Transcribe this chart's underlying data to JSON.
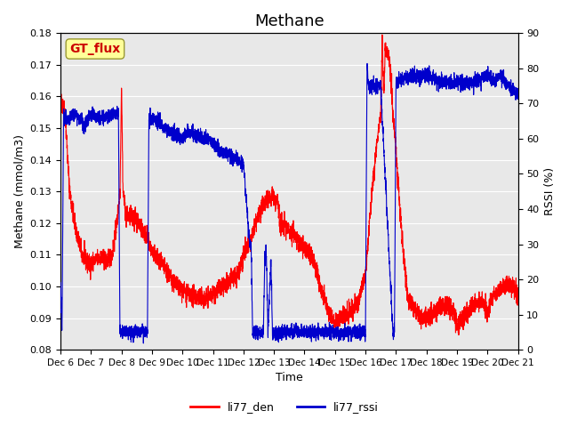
{
  "title": "Methane",
  "ylabel_left": "Methane (mmol/m3)",
  "ylabel_right": "RSSI (%)",
  "xlabel": "Time",
  "ylim_left": [
    0.08,
    0.18
  ],
  "ylim_right": [
    0,
    90
  ],
  "yticks_left": [
    0.08,
    0.09,
    0.1,
    0.11,
    0.12,
    0.13,
    0.14,
    0.15,
    0.16,
    0.17,
    0.18
  ],
  "yticks_right": [
    0,
    10,
    20,
    30,
    40,
    50,
    60,
    70,
    80,
    90
  ],
  "xtick_labels": [
    "Dec 6",
    "Dec 7",
    "Dec 8",
    "Dec 9",
    "Dec 10",
    "Dec 11",
    "Dec 12",
    "Dec 13",
    "Dec 14",
    "Dec 15",
    "Dec 16",
    "Dec 17",
    "Dec 18",
    "Dec 19",
    "Dec 20",
    "Dec 21"
  ],
  "color_red": "#ff0000",
  "color_blue": "#0000cc",
  "background_color": "#e8e8e8",
  "legend_label_red": "li77_den",
  "legend_label_blue": "li77_rssi",
  "annotation_text": "GT_flux",
  "annotation_color": "#cc0000",
  "annotation_bg": "#ffff99",
  "title_fontsize": 13,
  "red_xp": [
    0.0,
    0.15,
    0.3,
    0.5,
    0.7,
    0.9,
    1.0,
    1.1,
    1.3,
    1.5,
    1.7,
    1.85,
    1.95,
    2.0,
    2.05,
    2.15,
    2.3,
    2.5,
    2.7,
    2.9,
    3.0,
    3.2,
    3.4,
    3.6,
    3.8,
    4.0,
    4.2,
    4.4,
    4.6,
    4.8,
    5.0,
    5.2,
    5.4,
    5.6,
    5.8,
    6.0,
    6.2,
    6.4,
    6.6,
    6.8,
    6.9,
    6.95,
    7.0,
    7.05,
    7.1,
    7.2,
    7.3,
    7.4,
    7.5,
    7.7,
    7.9,
    8.0,
    8.2,
    8.4,
    8.6,
    8.8,
    9.0,
    9.2,
    9.4,
    9.6,
    9.8,
    10.0,
    10.1,
    10.2,
    10.3,
    10.4,
    10.5,
    10.55,
    10.6,
    10.65,
    10.7,
    10.8,
    10.9,
    11.0,
    11.2,
    11.4,
    11.6,
    11.8,
    12.0,
    12.2,
    12.4,
    12.6,
    12.8,
    12.85,
    12.9,
    12.95,
    13.0,
    13.2,
    13.4,
    13.6,
    13.8,
    14.0,
    14.2,
    14.4,
    14.6,
    14.8,
    15.0
  ],
  "red_yp": [
    0.159,
    0.155,
    0.13,
    0.118,
    0.11,
    0.107,
    0.107,
    0.108,
    0.109,
    0.108,
    0.11,
    0.12,
    0.13,
    0.165,
    0.13,
    0.122,
    0.122,
    0.121,
    0.118,
    0.114,
    0.111,
    0.108,
    0.106,
    0.103,
    0.1,
    0.099,
    0.097,
    0.097,
    0.096,
    0.096,
    0.098,
    0.099,
    0.1,
    0.102,
    0.104,
    0.11,
    0.113,
    0.12,
    0.125,
    0.128,
    0.128,
    0.129,
    0.128,
    0.126,
    0.128,
    0.12,
    0.119,
    0.119,
    0.118,
    0.116,
    0.113,
    0.112,
    0.11,
    0.105,
    0.097,
    0.092,
    0.089,
    0.09,
    0.091,
    0.093,
    0.096,
    0.104,
    0.116,
    0.128,
    0.138,
    0.148,
    0.155,
    0.178,
    0.16,
    0.175,
    0.174,
    0.172,
    0.154,
    0.143,
    0.115,
    0.096,
    0.093,
    0.091,
    0.09,
    0.091,
    0.093,
    0.094,
    0.093,
    0.092,
    0.091,
    0.09,
    0.088,
    0.09,
    0.092,
    0.095,
    0.095,
    0.092,
    0.098,
    0.099,
    0.101,
    0.1,
    0.097
  ],
  "blue_xp": [
    0.0,
    0.05,
    0.1,
    0.2,
    0.4,
    0.6,
    0.8,
    1.0,
    1.1,
    1.2,
    1.4,
    1.6,
    1.8,
    1.9,
    1.95,
    2.0,
    2.05,
    2.1,
    2.2,
    2.4,
    2.6,
    2.8,
    2.85,
    2.9,
    2.95,
    3.0,
    3.2,
    3.4,
    3.6,
    3.8,
    4.0,
    4.2,
    4.4,
    4.6,
    4.8,
    5.0,
    5.2,
    5.4,
    5.6,
    5.8,
    6.0,
    6.2,
    6.25,
    6.3,
    6.35,
    6.4,
    6.6,
    6.65,
    6.7,
    6.75,
    6.8,
    6.9,
    6.95,
    7.0,
    7.05,
    7.1,
    7.15,
    7.2,
    7.25,
    7.3,
    7.35,
    7.4,
    7.5,
    7.6,
    7.65,
    7.7,
    7.75,
    7.8,
    8.0,
    8.2,
    8.4,
    8.6,
    8.8,
    9.0,
    9.5,
    9.8,
    9.85,
    9.9,
    9.95,
    10.0,
    10.05,
    10.1,
    10.5,
    10.9,
    10.95,
    11.0,
    11.5,
    12.0,
    12.5,
    13.0,
    13.5,
    14.0,
    14.2,
    14.4,
    14.6,
    14.8,
    15.0
  ],
  "blue_yp": [
    20,
    5,
    67,
    65,
    67,
    66,
    64,
    67,
    67,
    66,
    66,
    67,
    67,
    68,
    5,
    5,
    5,
    5,
    5,
    5,
    5,
    5,
    5,
    66,
    66,
    66,
    65,
    63,
    62,
    61,
    60,
    62,
    61,
    60,
    60,
    59,
    57,
    56,
    55,
    54,
    53,
    30,
    30,
    5,
    5,
    5,
    5,
    5,
    26,
    27,
    5,
    26,
    5,
    5,
    5,
    5,
    5,
    5,
    5,
    5,
    5,
    5,
    5,
    5,
    5,
    5,
    5,
    5,
    5,
    5,
    5,
    5,
    5,
    5,
    5,
    5,
    5,
    5,
    5,
    5,
    82,
    75,
    75,
    5,
    5,
    76,
    78,
    78,
    76,
    76,
    76,
    78,
    76,
    78,
    76,
    74,
    72
  ]
}
